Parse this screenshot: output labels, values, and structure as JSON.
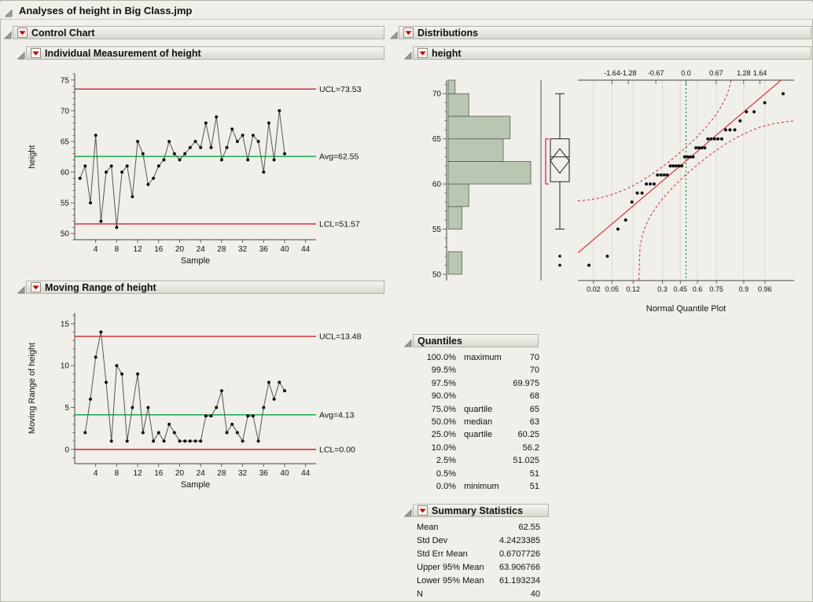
{
  "window": {
    "title": "Analyses of height in Big Class.jmp"
  },
  "sections": {
    "control_chart": {
      "title": "Control Chart"
    },
    "individual": {
      "title": "Individual Measurement of height"
    },
    "moving_range": {
      "title": "Moving Range of height"
    },
    "distributions": {
      "title": "Distributions"
    },
    "height": {
      "title": "height"
    },
    "quantiles": {
      "title": "Quantiles"
    },
    "summary": {
      "title": "Summary Statistics"
    }
  },
  "tables": {
    "quantiles": {
      "rows": [
        {
          "p": "100.0%",
          "label": "maximum",
          "value": "70"
        },
        {
          "p": "99.5%",
          "label": "",
          "value": "70"
        },
        {
          "p": "97.5%",
          "label": "",
          "value": "69.975"
        },
        {
          "p": "90.0%",
          "label": "",
          "value": "68"
        },
        {
          "p": "75.0%",
          "label": "quartile",
          "value": "65"
        },
        {
          "p": "50.0%",
          "label": "median",
          "value": "63"
        },
        {
          "p": "25.0%",
          "label": "quartile",
          "value": "60.25"
        },
        {
          "p": "10.0%",
          "label": "",
          "value": "56.2"
        },
        {
          "p": "2.5%",
          "label": "",
          "value": "51.025"
        },
        {
          "p": "0.5%",
          "label": "",
          "value": "51"
        },
        {
          "p": "0.0%",
          "label": "minimum",
          "value": "51"
        }
      ]
    },
    "summary": {
      "rows": [
        {
          "label": "Mean",
          "value": "62.55"
        },
        {
          "label": "Std Dev",
          "value": "4.2423385"
        },
        {
          "label": "Std Err Mean",
          "value": "0.6707726"
        },
        {
          "label": "Upper 95% Mean",
          "value": "63.906766"
        },
        {
          "label": "Lower 95% Mean",
          "value": "61.193234"
        },
        {
          "label": "N",
          "value": "40"
        }
      ]
    }
  },
  "colors": {
    "limit_line": "#cf2330",
    "center_line": "#00a33e",
    "connector": "#555555",
    "hist_fill": "#b9c6b2",
    "hist_stroke": "#565c53",
    "quantile_line": "#cf2330",
    "quantile_ci": "#cf2330",
    "quantile_zero_line": "#00a33e",
    "grid": "#dcdbd4"
  },
  "chart_data": [
    {
      "type": "line",
      "name": "individual-measurement",
      "title": "Individual Measurement of height",
      "xlabel": "Sample",
      "ylabel": "height",
      "x": [
        1,
        2,
        3,
        4,
        5,
        6,
        7,
        8,
        9,
        10,
        11,
        12,
        13,
        14,
        15,
        16,
        17,
        18,
        19,
        20,
        21,
        22,
        23,
        24,
        25,
        26,
        27,
        28,
        29,
        30,
        31,
        32,
        33,
        34,
        35,
        36,
        37,
        38,
        39,
        40
      ],
      "values": [
        59,
        61,
        55,
        66,
        52,
        60,
        61,
        51,
        60,
        61,
        56,
        65,
        63,
        58,
        59,
        61,
        62,
        65,
        63,
        62,
        63,
        64,
        65,
        64,
        68,
        64,
        69,
        62,
        64,
        67,
        65,
        66,
        62,
        66,
        65,
        60,
        68,
        62,
        70,
        63
      ],
      "ucl": 73.53,
      "avg": 62.55,
      "lcl": 51.57,
      "ucl_label": "UCL=73.53",
      "avg_label": "Avg=62.55",
      "lcl_label": "LCL=51.57",
      "yticks": [
        50,
        55,
        60,
        65,
        70,
        75
      ],
      "xticks": [
        4,
        8,
        12,
        16,
        20,
        24,
        28,
        32,
        36,
        40,
        44
      ],
      "ylim": [
        49,
        76
      ]
    },
    {
      "type": "line",
      "name": "moving-range",
      "title": "Moving Range of height",
      "xlabel": "Sample",
      "ylabel": "Moving Range of height",
      "x": [
        2,
        3,
        4,
        5,
        6,
        7,
        8,
        9,
        10,
        11,
        12,
        13,
        14,
        15,
        16,
        17,
        18,
        19,
        20,
        21,
        22,
        23,
        24,
        25,
        26,
        27,
        28,
        29,
        30,
        31,
        32,
        33,
        34,
        35,
        36,
        37,
        38,
        39,
        40
      ],
      "values": [
        2,
        6,
        11,
        14,
        8,
        1,
        10,
        9,
        1,
        5,
        9,
        2,
        5,
        1,
        2,
        1,
        3,
        2,
        1,
        1,
        1,
        1,
        1,
        4,
        4,
        5,
        7,
        2,
        3,
        2,
        1,
        4,
        4,
        1,
        5,
        8,
        6,
        8,
        7
      ],
      "ucl": 13.48,
      "avg": 4.13,
      "lcl": 0,
      "ucl_label": "UCL=13.48",
      "avg_label": "Avg=4.13",
      "lcl_label": "LCL=0.00",
      "yticks": [
        0,
        5,
        10,
        15
      ],
      "xticks": [
        4,
        8,
        12,
        16,
        20,
        24,
        28,
        32,
        36,
        40,
        44
      ],
      "ylim": [
        -1.7,
        16.3
      ]
    },
    {
      "type": "bar",
      "name": "height-histogram",
      "orientation": "horizontal",
      "bin_start": 50,
      "bin_width": 2.5,
      "counts": [
        2,
        0,
        2,
        3,
        12,
        8,
        9,
        3,
        1
      ],
      "axis_ticks": [
        50,
        55,
        60,
        65,
        70
      ]
    },
    {
      "type": "box",
      "name": "height-box-plot",
      "min_whisker": 55,
      "q1": 60.25,
      "median": 63,
      "q3": 65,
      "max_whisker": 70,
      "mean": 62.55,
      "mean_ci": [
        61.193234,
        63.906766
      ],
      "outliers": [
        51,
        52
      ],
      "shortest_half": [
        60,
        65
      ]
    },
    {
      "type": "scatter",
      "name": "normal-quantile-plot",
      "title": "Normal Quantile Plot",
      "sorted_values": [
        51,
        52,
        55,
        56,
        58,
        59,
        59,
        60,
        60,
        60,
        61,
        61,
        61,
        61,
        62,
        62,
        62,
        62,
        62,
        63,
        63,
        63,
        63,
        64,
        64,
        64,
        64,
        65,
        65,
        65,
        65,
        65,
        66,
        66,
        66,
        67,
        68,
        68,
        69,
        70
      ],
      "mean": 62.55,
      "std": 4.2423385,
      "n": 40,
      "top_tick_values": [
        -1.64,
        -1.28,
        -0.67,
        0,
        0.67,
        1.28,
        1.64
      ],
      "top_tick_labels": [
        "-1.64",
        "-1.28",
        "-0.67",
        "0.0",
        "0.67",
        "1.28",
        "1.64"
      ],
      "bottom_tick_values": [
        0.02,
        0.05,
        0.12,
        0.3,
        0.45,
        0.6,
        0.75,
        0.9,
        0.96
      ],
      "bottom_tick_labels": [
        "0.02",
        "0.05",
        "0.12",
        "0.3",
        "0.45",
        "0.6",
        "0.75",
        "0.9",
        "0.96"
      ]
    }
  ]
}
